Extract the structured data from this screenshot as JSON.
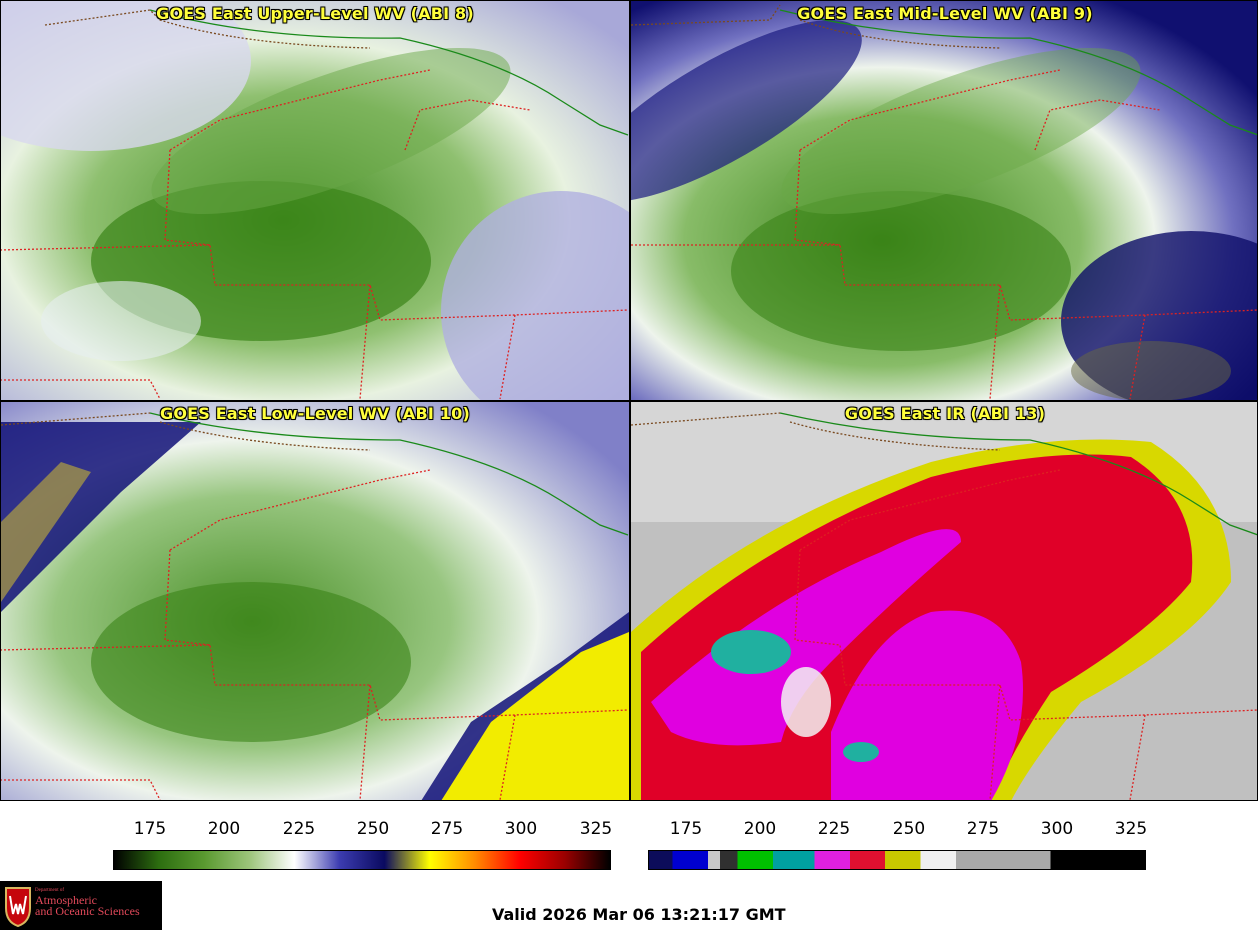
{
  "panels": [
    {
      "id": "upper",
      "title": "GOES East Upper-Level WV (ABI 8)",
      "base": "#d9d9ec"
    },
    {
      "id": "mid",
      "title": "GOES East Mid-Level WV (ABI 9)",
      "base": "#c8c8e6"
    },
    {
      "id": "low",
      "title": "GOES East Low-Level WV (ABI 10)",
      "base": "#c8d8c0"
    },
    {
      "id": "ir",
      "title": "GOES East IR (ABI 13)",
      "base": "#c4c4c4"
    }
  ],
  "colorbars": [
    {
      "id": "wv",
      "ticks": [
        "175",
        "200",
        "225",
        "250",
        "275",
        "300",
        "325"
      ],
      "stops": [
        "#000000",
        "#2d6e10",
        "#5a9a30",
        "#9cc47a",
        "#ffffff",
        "#3c3cb0",
        "#0a0a60",
        "#ffff00",
        "#ff8c00",
        "#ff0000",
        "#9a0000",
        "#000000"
      ]
    },
    {
      "id": "ir",
      "ticks": [
        "175",
        "200",
        "225",
        "250",
        "275",
        "300",
        "325"
      ],
      "segments": [
        {
          "c": "#0c0c5a",
          "w": 2
        },
        {
          "c": "#0000d0",
          "w": 3
        },
        {
          "c": "#c8c8c8",
          "w": 1
        },
        {
          "c": "#303030",
          "w": 1.5
        },
        {
          "c": "#00c000",
          "w": 3
        },
        {
          "c": "#00a0a0",
          "w": 3.5
        },
        {
          "c": "#e020e0",
          "w": 3
        },
        {
          "c": "#e01030",
          "w": 3
        },
        {
          "c": "#c8c800",
          "w": 3
        },
        {
          "c": "#f0f0f0",
          "w": 3
        },
        {
          "c": "#a8a8a8",
          "w": 8
        },
        {
          "c": "#000000",
          "w": 8
        }
      ]
    }
  ],
  "logo": {
    "line1": "Department of",
    "line2": "Atmospheric",
    "line3": "and Oceanic Sciences"
  },
  "valid_text": "Valid 2026 Mar 06 13:21:17 GMT",
  "colors": {
    "title": "#ffff3c",
    "state_border": "#dd2222",
    "country_border": "#7a4a20",
    "province_border": "#1a8a1a"
  }
}
